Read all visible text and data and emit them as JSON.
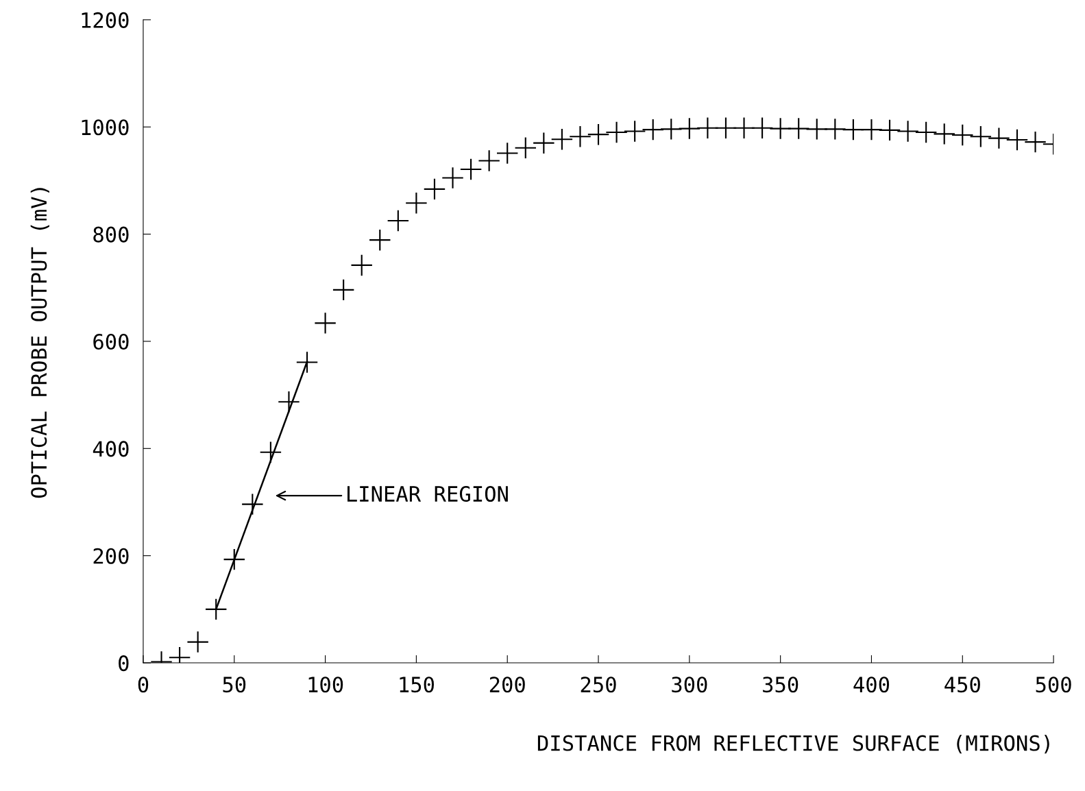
{
  "chart_data": {
    "type": "scatter",
    "xlabel": "DISTANCE FROM REFLECTIVE SURFACE (MIRONS)",
    "ylabel": "OPTICAL PROBE OUTPUT (mV)",
    "xlim": [
      0,
      500
    ],
    "ylim": [
      0,
      1200
    ],
    "xticks": [
      0,
      50,
      100,
      150,
      200,
      250,
      300,
      350,
      400,
      450,
      500
    ],
    "yticks": [
      0,
      200,
      400,
      600,
      800,
      1000,
      1200
    ],
    "grid": false,
    "legend": false,
    "annotations": [
      "LINEAR REGION"
    ],
    "series": [
      {
        "color": "#000000",
        "marker": "cross",
        "x": [
          10,
          20,
          30,
          40,
          50,
          60,
          70,
          80,
          90,
          100,
          110,
          120,
          130,
          140,
          150,
          160,
          170,
          180,
          190,
          200,
          210,
          220,
          230,
          240,
          250,
          260,
          270,
          280,
          290,
          300,
          310,
          320,
          330,
          340,
          350,
          360,
          370,
          380,
          390,
          400,
          410,
          420,
          430,
          440,
          450,
          460,
          470,
          480,
          490,
          500
        ],
        "values": [
          2,
          10,
          39,
          100,
          193,
          296,
          393,
          487,
          561,
          634,
          696,
          742,
          789,
          825,
          858,
          884,
          905,
          921,
          937,
          951,
          961,
          970,
          977,
          982,
          986,
          990,
          992,
          995,
          996,
          997,
          998,
          998,
          998,
          998,
          997,
          997,
          996,
          996,
          995,
          995,
          994,
          992,
          990,
          987,
          985,
          982,
          979,
          976,
          972,
          968
        ]
      },
      {
        "type": "line",
        "color": "#000000",
        "marker": "none",
        "line_style": "solid",
        "x": [
          40,
          90
        ],
        "values": [
          100,
          562
        ]
      }
    ]
  }
}
